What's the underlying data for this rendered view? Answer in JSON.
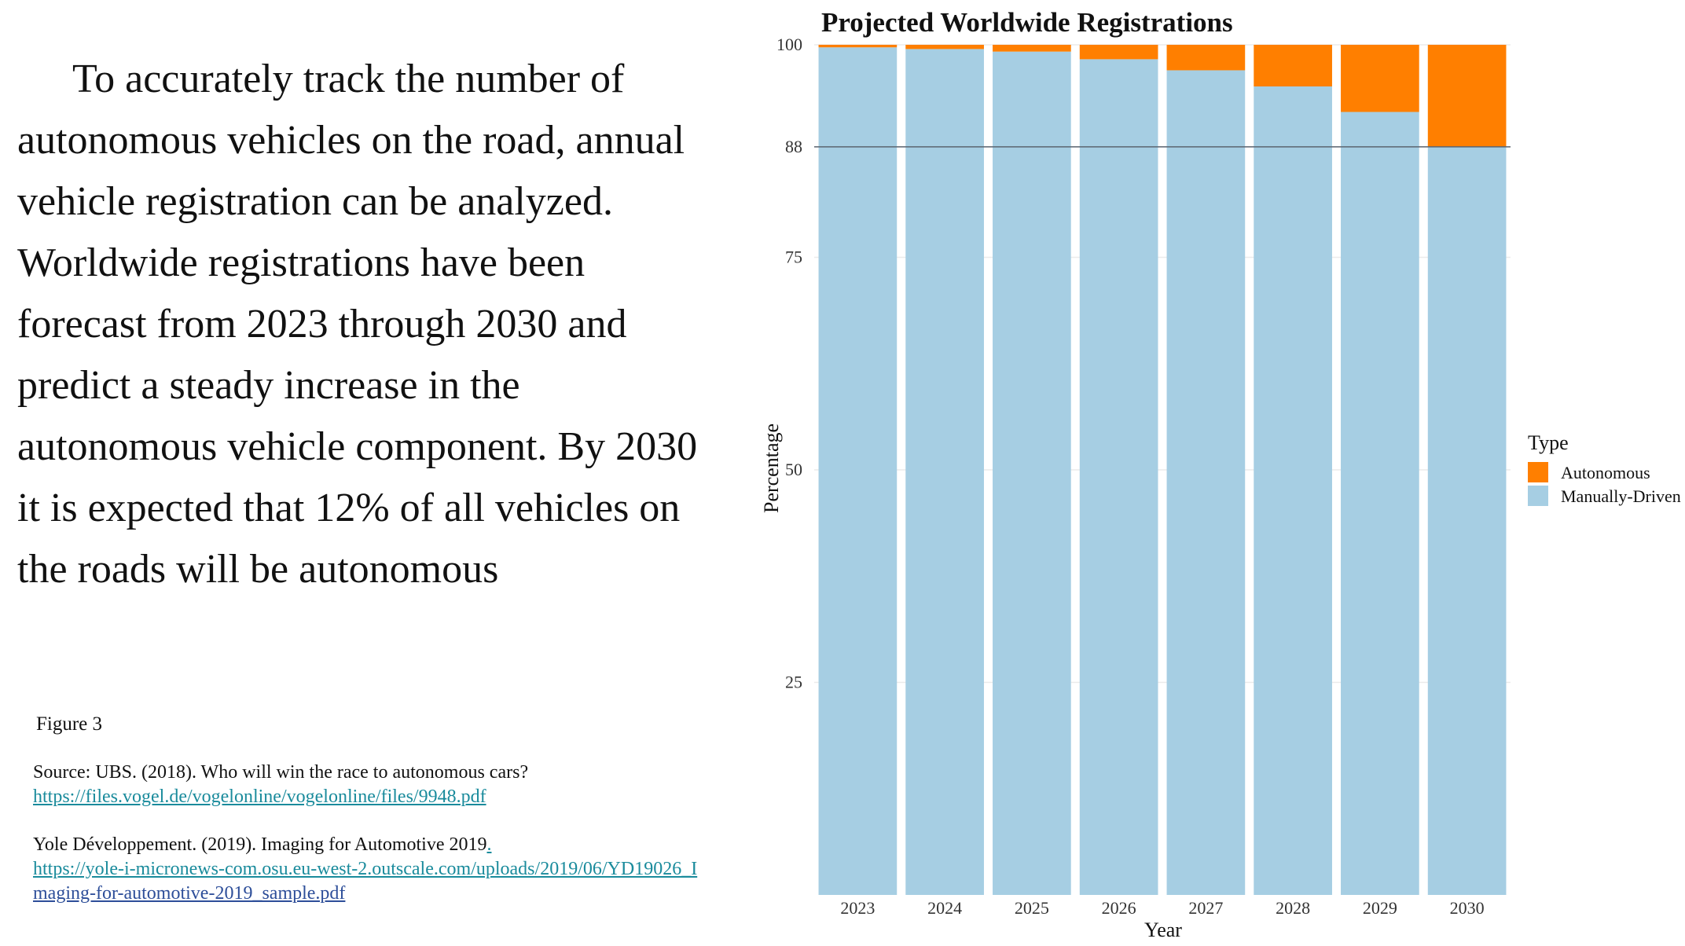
{
  "narrative": {
    "text": "To accurately track the number of autonomous vehicles on the road, annual vehicle registration can be analyzed. Worldwide registrations have been forecast from 2023 through 2030 and predict a steady increase in the autonomous vehicle component. By 2030 it is expected that 12% of all vehicles on the roads will be autonomous"
  },
  "figure_label": "Figure 3",
  "sources": {
    "ubs_citation": "Source: UBS. (2018). Who will win the race to autonomous cars?",
    "ubs_link": "https://files.vogel.de/vogelonline/vogelonline/files/9948.pdf",
    "yole_citation": "Yole Développement. (2019). Imaging for Automotive 2019",
    "yole_period": ".",
    "yole_link_part1": "https://yole-i-micronews-com.osu.eu-west-2.outscale.com/uploads/2019/06/YD19026_I",
    "yole_link_part2": "maging-for-automotive-2019_sample.pdf"
  },
  "chart_data": {
    "type": "bar",
    "stacked": true,
    "title": "Projected Worldwide Registrations",
    "xlabel": "Year",
    "ylabel": "Percentage",
    "categories": [
      "2023",
      "2024",
      "2025",
      "2026",
      "2027",
      "2028",
      "2029",
      "2030"
    ],
    "series": [
      {
        "name": "Manually-Driven",
        "color": "#a6cee3",
        "values": [
          99.7,
          99.5,
          99.2,
          98.3,
          97.0,
          95.1,
          92.1,
          88.0
        ]
      },
      {
        "name": "Autonomous",
        "color": "#ff7f00",
        "values": [
          0.3,
          0.5,
          0.8,
          1.7,
          3.0,
          4.9,
          7.9,
          12.0
        ]
      }
    ],
    "ylim": [
      0,
      100
    ],
    "yticks": [
      25,
      50,
      75,
      88,
      100
    ],
    "reference_line": 88,
    "grid": true,
    "legend": {
      "title": "Type",
      "position": "right",
      "entries": [
        "Autonomous",
        "Manually-Driven"
      ]
    }
  }
}
